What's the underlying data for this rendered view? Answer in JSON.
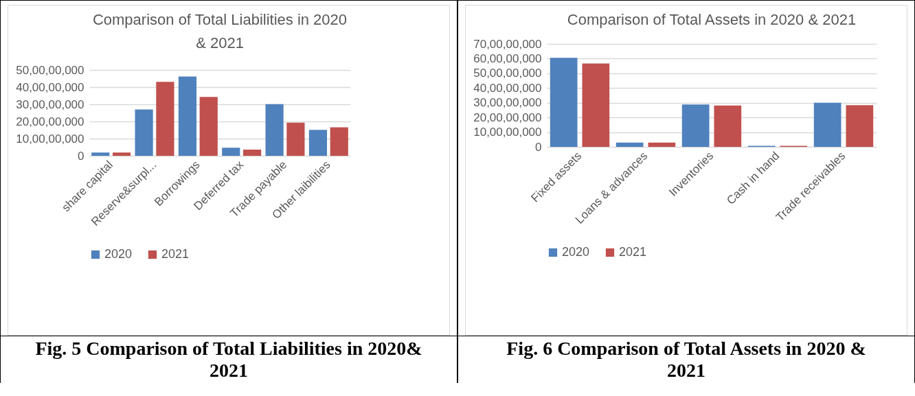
{
  "chart_data": [
    {
      "type": "bar",
      "title": "Comparison of Total Liabilities in 2020 & 2021",
      "categories": [
        "share capital",
        "Reserve&surpl...",
        "Borrowings",
        "Deferred tax",
        "Trade payable",
        "Other laibilities"
      ],
      "series": [
        {
          "name": "2020",
          "color": "#4f81bd",
          "values": [
            19000000,
            270000000,
            462000000,
            47000000,
            301000000,
            151000000
          ]
        },
        {
          "name": "2021",
          "color": "#c0504d",
          "values": [
            19000000,
            431000000,
            343000000,
            36000000,
            193000000,
            166000000
          ]
        }
      ],
      "ylim": [
        0,
        500000000
      ],
      "yticks": [
        {
          "value": 0,
          "label": "0"
        },
        {
          "value": 100000000,
          "label": "10,00,00,000"
        },
        {
          "value": 200000000,
          "label": "20,00,00,000"
        },
        {
          "value": 300000000,
          "label": "30,00,00,000"
        },
        {
          "value": 400000000,
          "label": "40,00,00,000"
        },
        {
          "value": 500000000,
          "label": "50,00,00,000"
        }
      ],
      "grid": "y",
      "legend": "bottom",
      "annotations": [
        "Fig. 5 Comparison of Total Liabilities in 2020& 2021"
      ]
    },
    {
      "type": "bar",
      "title": "Comparison of Total Assets in 2020 & 2021",
      "categories": [
        "Fixed assets",
        "Loans & advances",
        "Inventories",
        "Cash in hand",
        "Trade receivables"
      ],
      "series": [
        {
          "name": "2020",
          "color": "#4f81bd",
          "values": [
            606000000,
            29000000,
            288000000,
            7000000,
            300000000
          ]
        },
        {
          "name": "2021",
          "color": "#c0504d",
          "values": [
            567000000,
            29000000,
            281000000,
            7000000,
            284000000
          ]
        }
      ],
      "ylim": [
        0,
        700000000
      ],
      "yticks": [
        {
          "value": 0,
          "label": "0"
        },
        {
          "value": 100000000,
          "label": "10,00,00,000"
        },
        {
          "value": 200000000,
          "label": "20,00,00,000"
        },
        {
          "value": 300000000,
          "label": "30,00,00,000"
        },
        {
          "value": 400000000,
          "label": "40,00,00,000"
        },
        {
          "value": 500000000,
          "label": "50,00,00,000"
        },
        {
          "value": 600000000,
          "label": "60,00,00,000"
        },
        {
          "value": 700000000,
          "label": "70,00,00,000"
        }
      ],
      "grid": "y",
      "legend": "bottom",
      "annotations": [
        "Fig. 6 Comparison of Total Assets in 2020 & 2021"
      ]
    }
  ]
}
